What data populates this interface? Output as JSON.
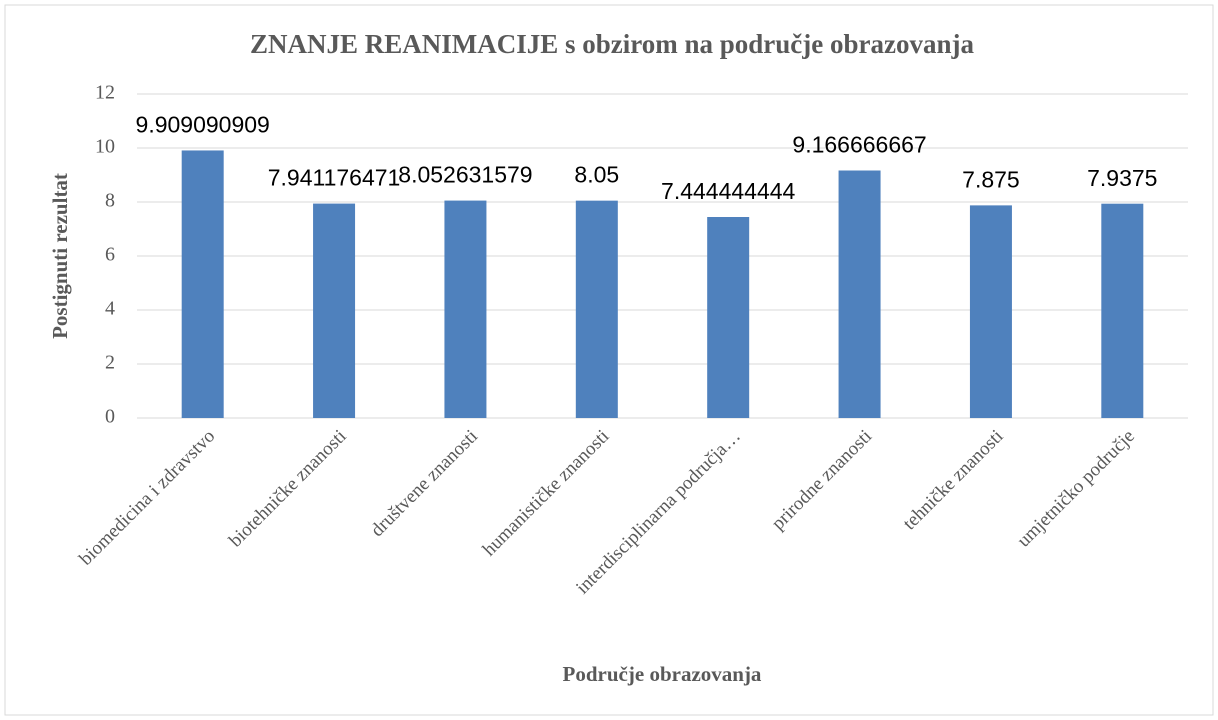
{
  "chart_data": {
    "type": "bar",
    "title": "ZNANJE REANIMACIJE s obzirom na područje obrazovanja",
    "x_label": "Područje obrazovanja",
    "y_label": "Postignuti rezultat",
    "categories": [
      "biomedicina i zdravstvo",
      "biotehničke znanosti",
      "društvene znanosti",
      "humanističke znanosti",
      "interdisciplinarna područja…",
      "prirodne znanosti",
      "tehničke znanosti",
      "umjetničko područje"
    ],
    "values": [
      9.909090909,
      7.941176471,
      8.052631579,
      8.05,
      7.444444444,
      9.166666667,
      7.875,
      7.9375
    ],
    "color": "#4f81bd",
    "ylim": [
      0,
      12
    ],
    "yticks": [
      0,
      2,
      4,
      6,
      8,
      10,
      12
    ],
    "grid": true
  }
}
